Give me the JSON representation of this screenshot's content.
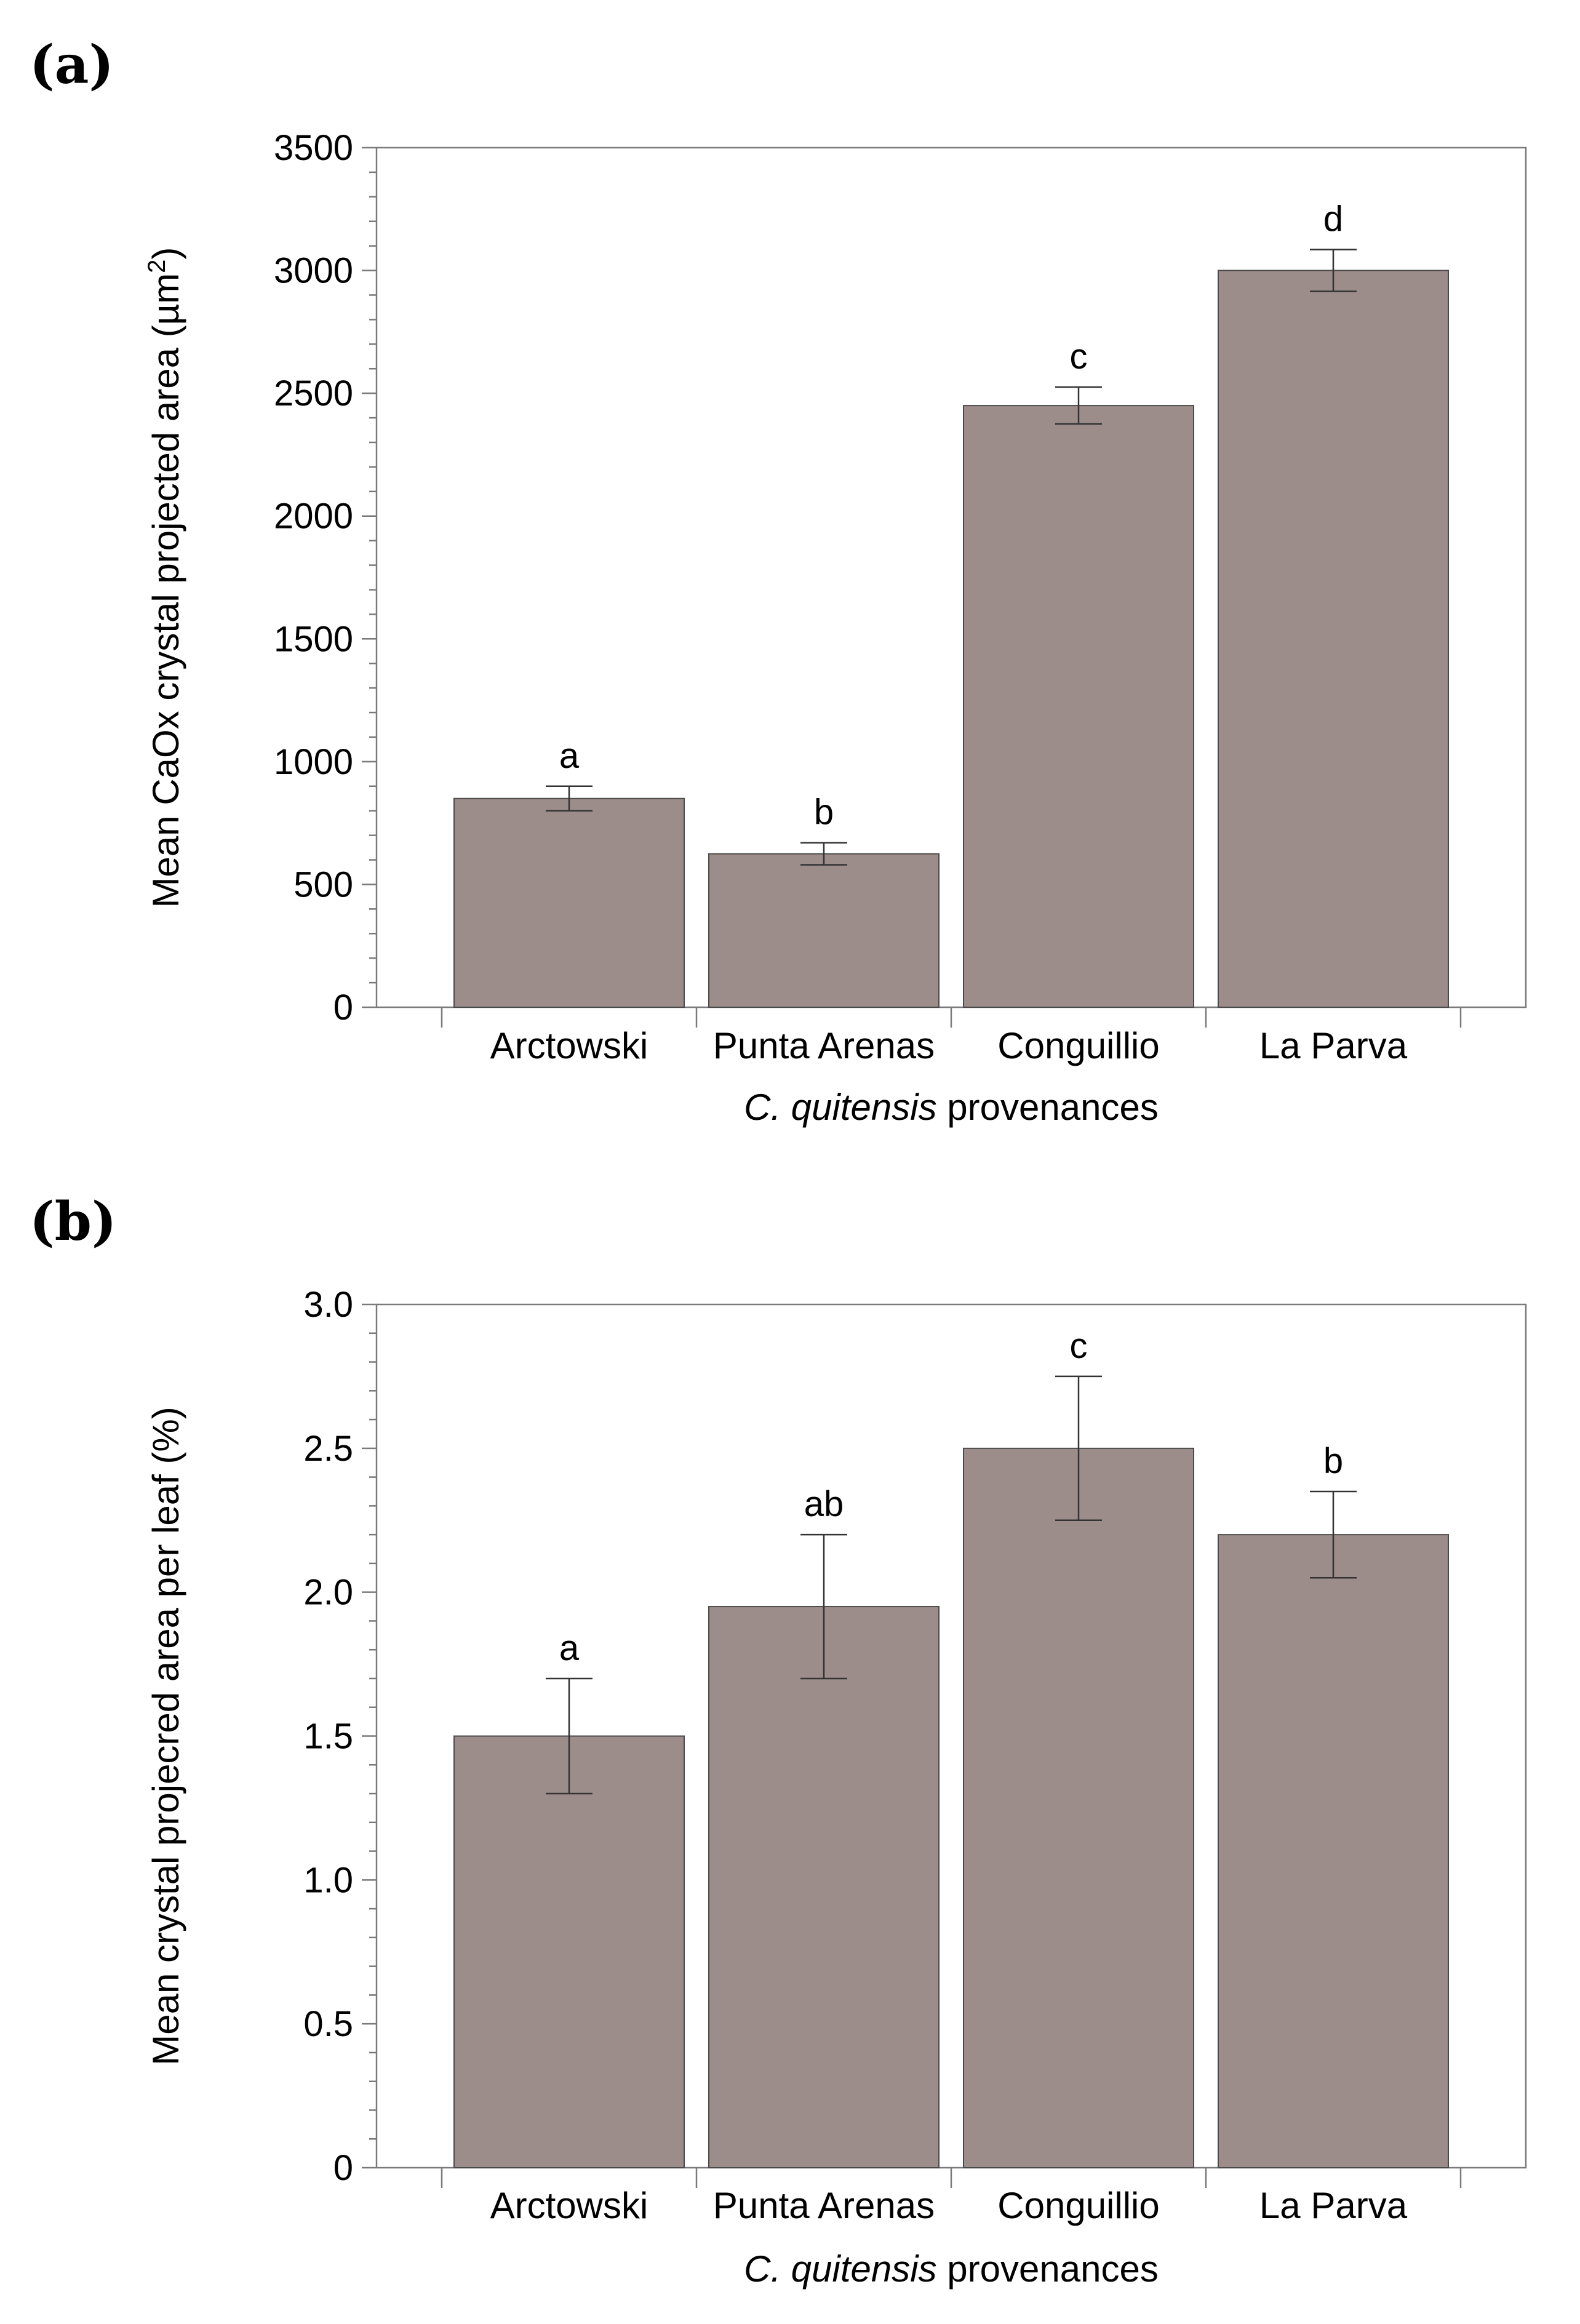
{
  "colors": {
    "bar_fill": "#9c8d8a",
    "bar_stroke": "#4a4a4a",
    "axis": "#7a7a7a",
    "error_bar": "#333333"
  },
  "chart_data": [
    {
      "id": "a",
      "panel_label": "(a)",
      "type": "bar",
      "categories": [
        "Arctowski",
        "Punta Arenas",
        "Conguillio",
        "La Parva"
      ],
      "values": [
        850,
        625,
        2450,
        3000
      ],
      "errors": [
        50,
        45,
        75,
        85
      ],
      "significance": [
        "a",
        "b",
        "c",
        "d"
      ],
      "ylim": [
        0,
        3500
      ],
      "yticks": [
        0,
        500,
        1000,
        1500,
        2000,
        2500,
        3000,
        3500
      ],
      "ytick_labels": [
        "0",
        "500",
        "1000",
        "1500",
        "2000",
        "2500",
        "3000",
        "3500"
      ],
      "minor_per_major": 5,
      "ylabel_main": "Mean CaOx crystal projected area (µm",
      "ylabel_sup": "2",
      "ylabel_end": ")",
      "xlabel_italic": "C. quitensis",
      "xlabel_rest": " provenances"
    },
    {
      "id": "b",
      "panel_label": "(b)",
      "type": "bar",
      "categories": [
        "Arctowski",
        "Punta Arenas",
        "Conguillio",
        "La Parva"
      ],
      "values": [
        1.5,
        1.95,
        2.5,
        2.2
      ],
      "errors": [
        0.2,
        0.25,
        0.25,
        0.15
      ],
      "significance": [
        "a",
        "ab",
        "c",
        "b"
      ],
      "ylim": [
        0,
        3.0
      ],
      "yticks": [
        0,
        0.5,
        1.0,
        1.5,
        2.0,
        2.5,
        3.0
      ],
      "ytick_labels": [
        "0",
        "0.5",
        "1.0",
        "1.5",
        "2.0",
        "2.5",
        "3.0"
      ],
      "minor_per_major": 5,
      "ylabel_main": "Mean crystal projecred area per leaf (%)",
      "ylabel_sup": "",
      "ylabel_end": "",
      "xlabel_italic": "C. quitensis",
      "xlabel_rest": " provenances"
    }
  ]
}
